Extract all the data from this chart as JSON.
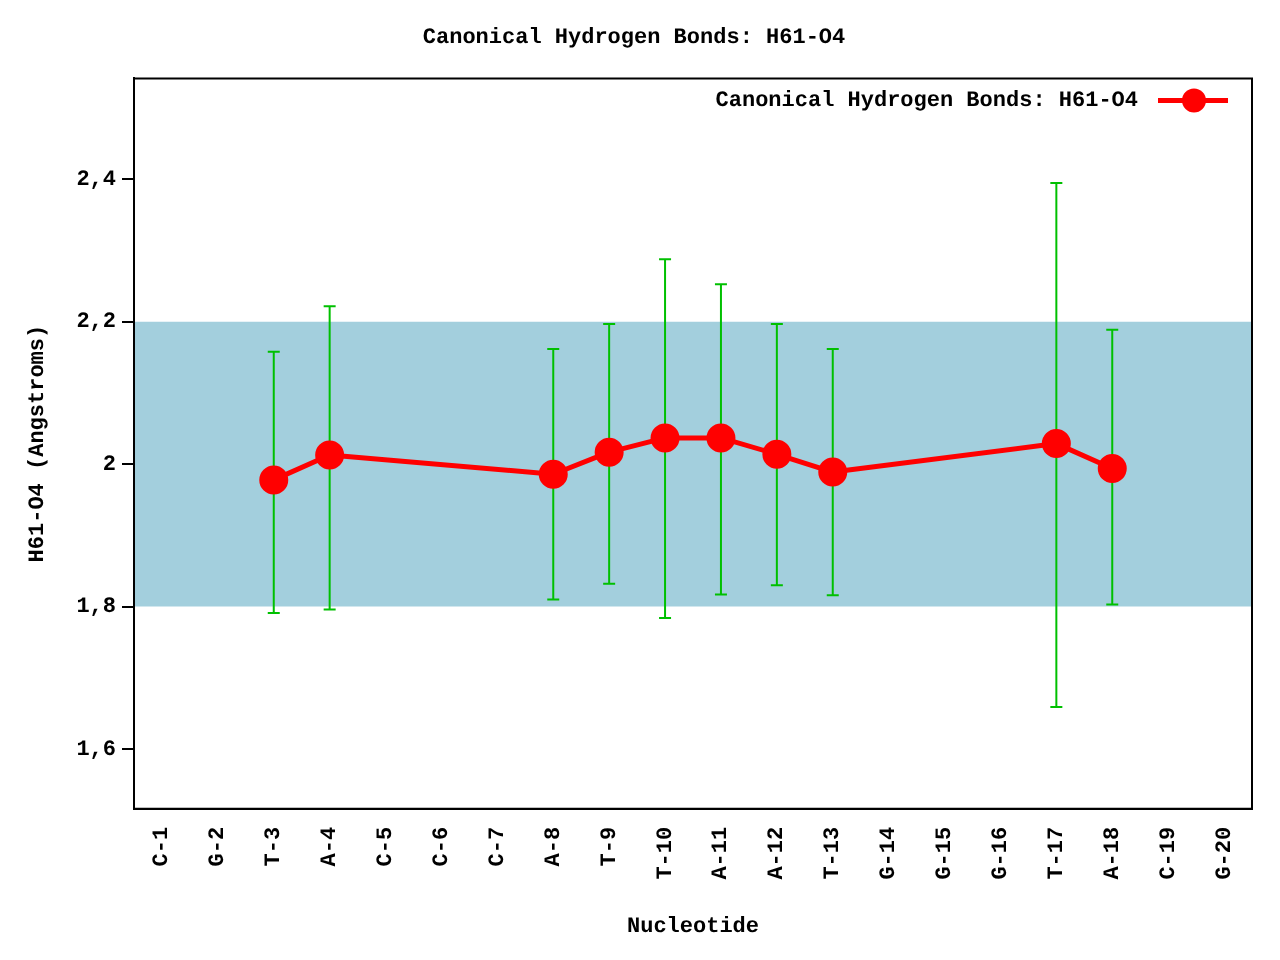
{
  "chart_data": {
    "type": "line",
    "title": "Canonical Hydrogen Bonds: H61-O4",
    "xlabel": "Nucleotide",
    "ylabel": "H61-O4 (Angstroms)",
    "categories": [
      "C-1",
      "G-2",
      "T-3",
      "A-4",
      "C-5",
      "C-6",
      "C-7",
      "A-8",
      "T-9",
      "T-10",
      "A-11",
      "A-12",
      "T-13",
      "G-14",
      "G-15",
      "G-16",
      "T-17",
      "A-18",
      "C-19",
      "G-20"
    ],
    "series": [
      {
        "name": "Canonical Hydrogen Bonds: H61-O4",
        "color": "#ff0000",
        "values": [
          null,
          null,
          1.978,
          2.013,
          null,
          null,
          null,
          1.986,
          2.017,
          2.037,
          2.037,
          2.014,
          1.989,
          null,
          null,
          null,
          2.029,
          1.994,
          null,
          null
        ],
        "errors": [
          null,
          null,
          [
            1.791,
            2.158
          ],
          [
            1.796,
            2.222
          ],
          null,
          null,
          null,
          [
            1.81,
            2.162
          ],
          [
            1.832,
            2.197
          ],
          [
            1.784,
            2.288
          ],
          [
            1.817,
            2.253
          ],
          [
            1.83,
            2.197
          ],
          [
            1.816,
            2.162
          ],
          null,
          null,
          null,
          [
            1.659,
            2.395
          ],
          [
            1.803,
            2.189
          ],
          null,
          null
        ]
      }
    ],
    "ylim": [
      1.516,
      2.542
    ],
    "yticks": [
      {
        "value": 1.6,
        "label": "1,6"
      },
      {
        "value": 1.8,
        "label": "1,8"
      },
      {
        "value": 2,
        "label": "2"
      },
      {
        "value": 2.2,
        "label": "2,2"
      },
      {
        "value": 2.4,
        "label": "2,4"
      }
    ],
    "bands": [
      {
        "axis": "y",
        "from": 1.8,
        "to": 2.2,
        "color": "#a3cfdd"
      }
    ],
    "grid": false,
    "legend": "top right",
    "marker": "circle",
    "line_style": "solid"
  }
}
